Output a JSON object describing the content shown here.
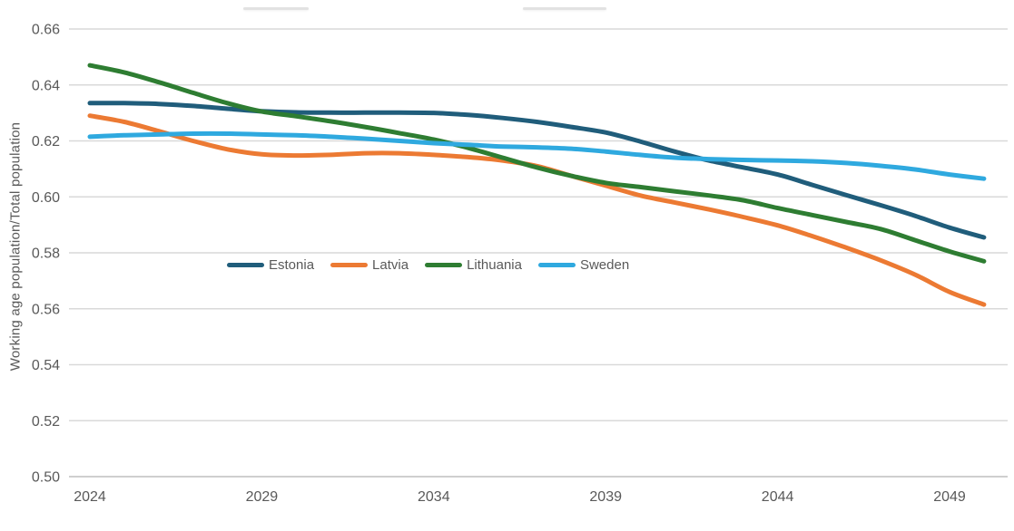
{
  "chart_data": {
    "type": "line",
    "title": "",
    "xlabel": "",
    "ylabel": "Working age population/Total population",
    "x": [
      2024,
      2025,
      2026,
      2027,
      2028,
      2029,
      2030,
      2031,
      2032,
      2033,
      2034,
      2035,
      2036,
      2037,
      2038,
      2039,
      2040,
      2041,
      2042,
      2043,
      2044,
      2045,
      2046,
      2047,
      2048,
      2049,
      2050
    ],
    "x_tick_labels": [
      "2024",
      "2029",
      "2034",
      "2039",
      "2044",
      "2049"
    ],
    "x_ticks": [
      2024,
      2029,
      2034,
      2039,
      2044,
      2049
    ],
    "y_ticks": [
      0.5,
      0.52,
      0.54,
      0.56,
      0.58,
      0.6,
      0.62,
      0.64,
      0.66
    ],
    "ylim": [
      0.5,
      0.66
    ],
    "xlim": [
      2024,
      2050
    ],
    "grid": "horizontal",
    "legend_position": "inside-center-left",
    "series": [
      {
        "name": "Estonia",
        "color": "#205D7B",
        "values": [
          0.6335,
          0.6335,
          0.6332,
          0.6325,
          0.6315,
          0.6306,
          0.6302,
          0.6301,
          0.6301,
          0.6301,
          0.63,
          0.6293,
          0.6282,
          0.6268,
          0.625,
          0.623,
          0.6198,
          0.6162,
          0.613,
          0.6105,
          0.608,
          0.6043,
          0.6006,
          0.597,
          0.5932,
          0.589,
          0.5855
        ]
      },
      {
        "name": "Latvia",
        "color": "#EC7A33",
        "values": [
          0.629,
          0.6268,
          0.6235,
          0.62,
          0.617,
          0.6152,
          0.6148,
          0.615,
          0.6156,
          0.6156,
          0.615,
          0.6142,
          0.613,
          0.611,
          0.6075,
          0.604,
          0.6005,
          0.598,
          0.5955,
          0.5928,
          0.5898,
          0.586,
          0.5818,
          0.5773,
          0.5722,
          0.566,
          0.5615
        ]
      },
      {
        "name": "Lithuania",
        "color": "#2E7D32",
        "values": [
          0.647,
          0.6445,
          0.641,
          0.6372,
          0.6335,
          0.6305,
          0.6288,
          0.627,
          0.625,
          0.6228,
          0.6205,
          0.6175,
          0.614,
          0.6105,
          0.6075,
          0.605,
          0.6035,
          0.602,
          0.6005,
          0.5988,
          0.596,
          0.5935,
          0.591,
          0.5885,
          0.5845,
          0.5805,
          0.577
        ]
      },
      {
        "name": "Sweden",
        "color": "#2FA9DF",
        "values": [
          0.6215,
          0.622,
          0.6223,
          0.6226,
          0.6226,
          0.6223,
          0.622,
          0.6215,
          0.6208,
          0.62,
          0.6192,
          0.6186,
          0.618,
          0.6177,
          0.6172,
          0.6162,
          0.615,
          0.614,
          0.6135,
          0.6132,
          0.613,
          0.6127,
          0.6121,
          0.6111,
          0.6098,
          0.608,
          0.6065
        ]
      }
    ],
    "colors": {
      "gridline": "#D9D9D9",
      "axis_line": "#BFBFBF",
      "tick_text": "#595959"
    }
  }
}
